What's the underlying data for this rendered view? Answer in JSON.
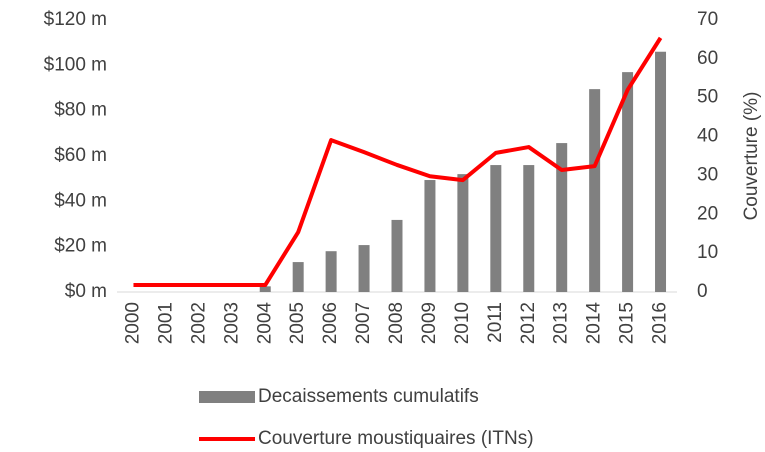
{
  "chart_data": {
    "type": "bar_line",
    "categories": [
      "2000",
      "2001",
      "2002",
      "2003",
      "2004",
      "2005",
      "2006",
      "2007",
      "2008",
      "2009",
      "2010",
      "2011",
      "2012",
      "2013",
      "2014",
      "2015",
      "2016"
    ],
    "series": [
      {
        "name": "Decaissements cumulatifs",
        "color": "#808080",
        "type": "bar",
        "axis": "y",
        "values": [
          0,
          0,
          0,
          0,
          2.5,
          13.2,
          18,
          20.7,
          31.8,
          49.4,
          52,
          56,
          56,
          65.7,
          89.5,
          97,
          106
        ]
      },
      {
        "name": "Couverture moustiquaires (ITNs)",
        "color": "#ff0000",
        "type": "line",
        "axis": "y2",
        "values": [
          1.8,
          1.8,
          1.8,
          1.8,
          1.8,
          15.4,
          39.1,
          36,
          32.7,
          29.8,
          28.8,
          35.8,
          37.3,
          31.4,
          32.4,
          52,
          65.4
        ]
      }
    ],
    "ylim": [
      0,
      120
    ],
    "yticks": [
      {
        "value": 0,
        "label": "$0 m"
      },
      {
        "value": 20,
        "label": "$20 m"
      },
      {
        "value": 40,
        "label": "$40 m"
      },
      {
        "value": 60,
        "label": "$60 m"
      },
      {
        "value": 80,
        "label": "$80 m"
      },
      {
        "value": 100,
        "label": "$100 m"
      },
      {
        "value": 120,
        "label": "$120 m"
      }
    ],
    "y2lim": [
      0,
      70
    ],
    "y2ticks": [
      0,
      10,
      20,
      30,
      40,
      50,
      60,
      70
    ],
    "y2_label": "Couverture (%)",
    "legend": "bottom"
  }
}
